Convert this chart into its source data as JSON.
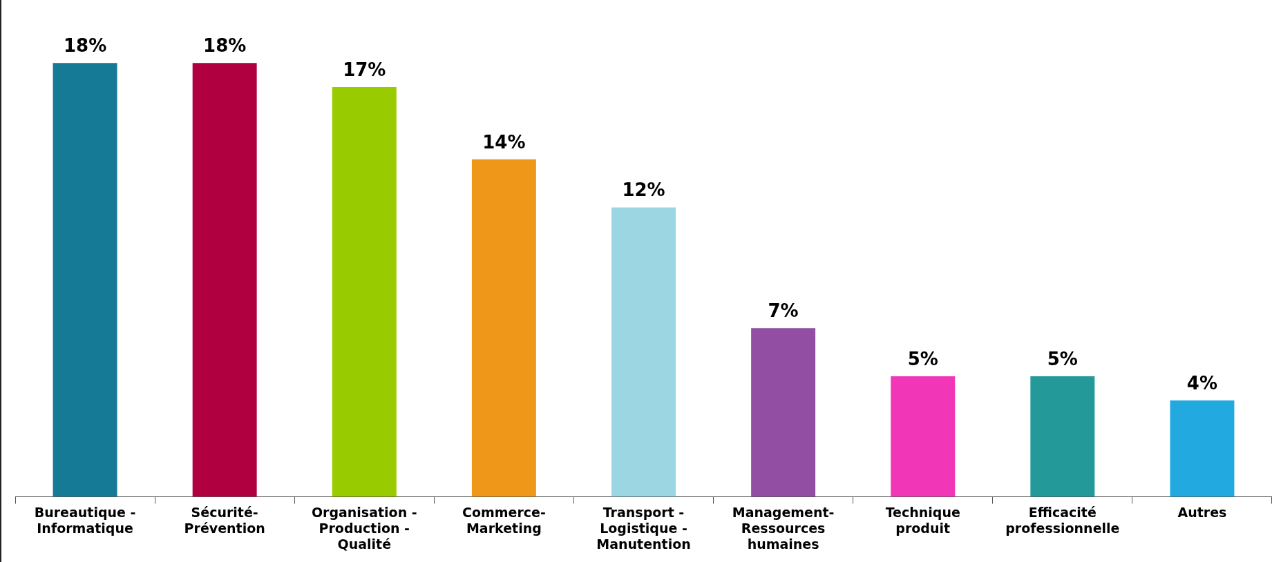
{
  "chart_data": {
    "type": "bar",
    "categories": [
      "Bureautique -\nInformatique",
      "Sécurité-\nPrévention",
      "Organisation -\nProduction -\nQualité",
      "Commerce-\nMarketing",
      "Transport -\nLogistique -\nManutention",
      "Management-\nRessources\nhumaines",
      "Technique\nproduit",
      "Efficacité\nprofessionnelle",
      "Autres"
    ],
    "values": [
      18,
      18,
      17,
      14,
      12,
      7,
      5,
      5,
      4
    ],
    "value_labels": [
      "18%",
      "18%",
      "17%",
      "14%",
      "12%",
      "7%",
      "5%",
      "5%",
      "4%"
    ],
    "colors": [
      "#157a96",
      "#b0003f",
      "#99cc00",
      "#ef9719",
      "#9dd6e3",
      "#914ea2",
      "#f236b8",
      "#23999a",
      "#22aae0"
    ],
    "grid": false,
    "legend": false
  }
}
